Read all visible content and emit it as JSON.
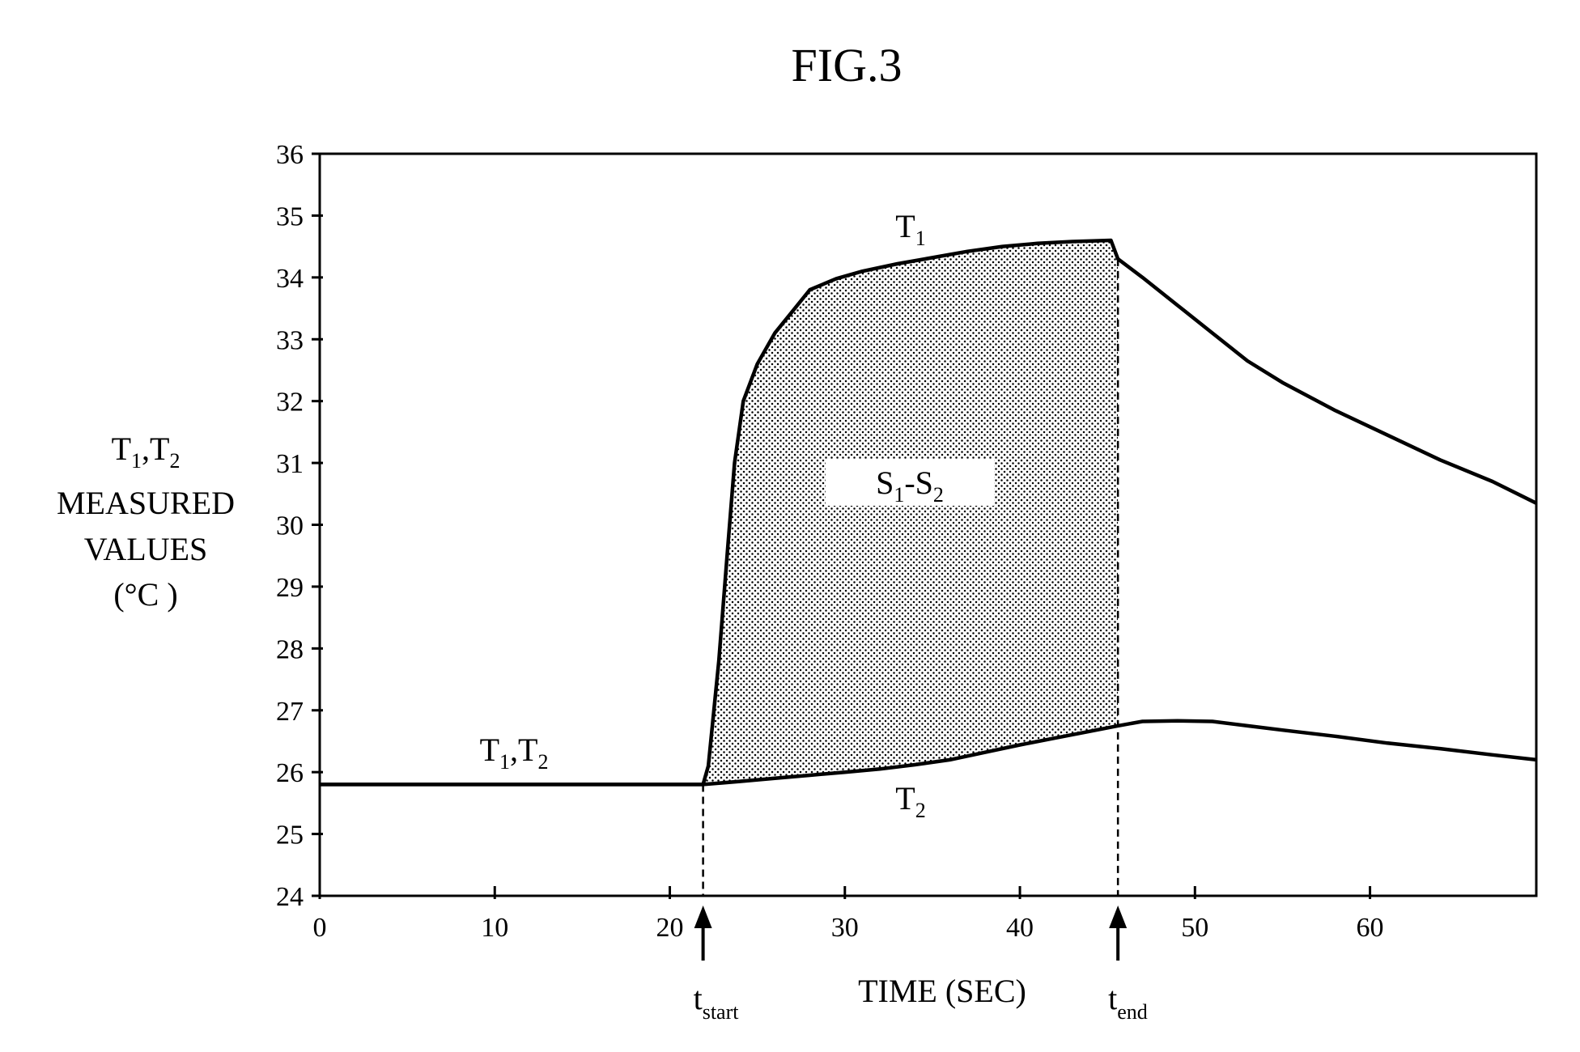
{
  "figure": {
    "title": "FIG.3"
  },
  "chart_data": {
    "type": "line",
    "xlabel": "TIME (SEC)",
    "ylabel": {
      "line1_main": "T",
      "line1_sub1": "1",
      "line1_sep": ",T",
      "line1_sub2": "2",
      "line2": "MEASURED",
      "line3": "VALUES",
      "line4": "(°C )"
    },
    "xlim": [
      0,
      69.5
    ],
    "ylim": [
      24,
      36
    ],
    "x_ticks": [
      0,
      10,
      20,
      30,
      40,
      50,
      60
    ],
    "y_ticks": [
      24,
      25,
      26,
      27,
      28,
      29,
      30,
      31,
      32,
      33,
      34,
      35,
      36
    ],
    "grid": false,
    "series": [
      {
        "name": "T1",
        "x": [
          0,
          5,
          10,
          15,
          20,
          21.9,
          22.2,
          22.8,
          23.3,
          23.7,
          24.2,
          25.0,
          26.0,
          27.0,
          28.0,
          29.5,
          31.0,
          33.0,
          35.0,
          37.0,
          39.0,
          41.0,
          43.0,
          45.2,
          45.6,
          47.0,
          49.0,
          51.0,
          53.0,
          55.0,
          58.0,
          61.0,
          64.0,
          67.0,
          69.5
        ],
        "y": [
          25.8,
          25.8,
          25.8,
          25.8,
          25.8,
          25.8,
          26.1,
          27.8,
          29.6,
          31.0,
          32.0,
          32.6,
          33.1,
          33.45,
          33.8,
          33.98,
          34.1,
          34.22,
          34.32,
          34.42,
          34.5,
          34.55,
          34.58,
          34.6,
          34.3,
          34.0,
          33.55,
          33.1,
          32.65,
          32.3,
          31.85,
          31.45,
          31.05,
          30.7,
          30.35
        ]
      },
      {
        "name": "T2",
        "x": [
          0,
          5,
          10,
          15,
          20,
          21.9,
          24,
          26,
          28,
          30,
          32,
          34,
          36,
          38,
          40,
          42,
          44,
          45.6,
          47,
          49,
          51,
          53,
          55,
          58,
          61,
          64,
          67,
          69.5
        ],
        "y": [
          25.8,
          25.8,
          25.8,
          25.8,
          25.8,
          25.8,
          25.85,
          25.9,
          25.95,
          26.0,
          26.05,
          26.12,
          26.2,
          26.32,
          26.44,
          26.55,
          26.66,
          26.75,
          26.82,
          26.83,
          26.82,
          26.75,
          26.68,
          26.58,
          26.47,
          26.38,
          26.28,
          26.2
        ]
      }
    ],
    "shaded_region": {
      "label_main1": "S",
      "label_sub1": "1",
      "label_sep": "-S",
      "label_sub2": "2",
      "x_from": 21.9,
      "x_to": 45.6
    },
    "annotations": [
      {
        "id": "t1t2",
        "main1": "T",
        "sub1": "1",
        "sep": ",T",
        "sub2": "2",
        "x": 11.5,
        "y": 26.05
      },
      {
        "id": "t1",
        "main1": "T",
        "sub1": "1",
        "x": 34.4,
        "y": 34.7
      },
      {
        "id": "t2",
        "main1": "T",
        "sub1": "2",
        "x": 34.4,
        "y": 25.5
      }
    ],
    "markers": [
      {
        "main": "t",
        "sub": "start",
        "x": 21.9
      },
      {
        "main": "t",
        "sub": "end",
        "x": 45.6
      }
    ]
  }
}
